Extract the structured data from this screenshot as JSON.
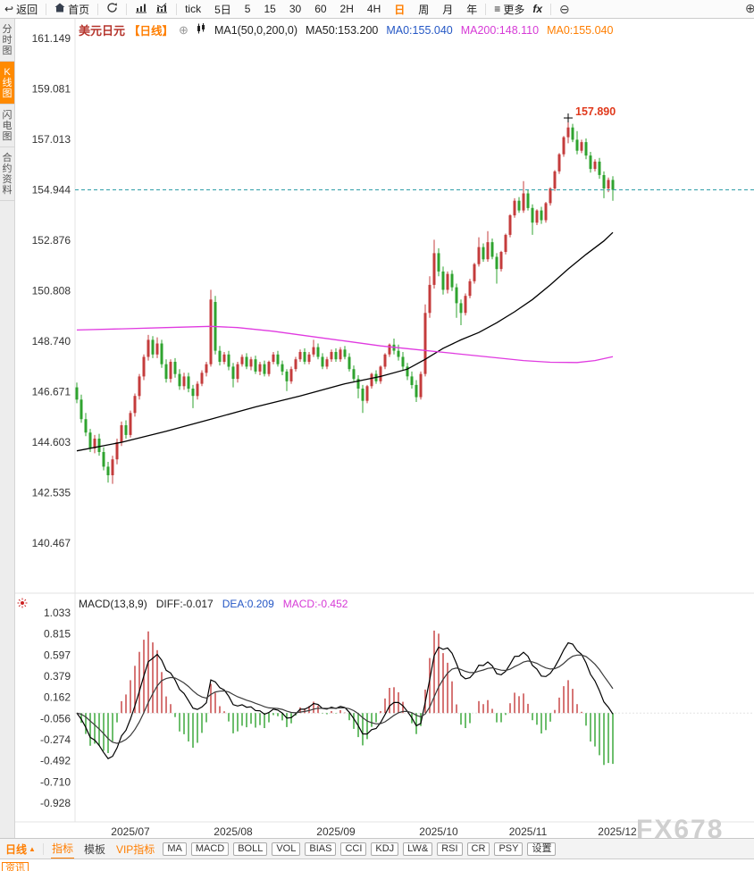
{
  "top_toolbar": {
    "back_label": "返回",
    "home_label": "首页",
    "more_label": "更多",
    "fx_label": "fx",
    "periods": [
      "tick",
      "5日",
      "5",
      "15",
      "30",
      "60",
      "2H",
      "4H",
      "日",
      "周",
      "月",
      "年"
    ],
    "active_period": "日"
  },
  "sidebar": {
    "items": [
      {
        "label": "分时图",
        "active": false
      },
      {
        "label": "K线图",
        "active": true
      },
      {
        "label": "闪电图",
        "active": false
      },
      {
        "label": "合约资料",
        "active": false
      }
    ]
  },
  "chart_header": {
    "symbol": "美元日元",
    "period_tag": "【日线】",
    "ma_settings": "MA1(50,0,200,0)",
    "ma50": "MA50:153.200",
    "ma0_blue": "MA0:155.040",
    "ma200": "MA200:148.110",
    "ma0_orange": "MA0:155.040"
  },
  "macd_header": {
    "title": "MACD(13,8,9)",
    "diff": "DIFF:-0.017",
    "dea": "DEA:0.209",
    "macd": "MACD:-0.452"
  },
  "bottom_toolbar": {
    "period_label": "日线",
    "tabs": [
      {
        "label": "指标",
        "active": true,
        "vip": false
      },
      {
        "label": "模板",
        "active": false,
        "vip": false
      },
      {
        "label": "VIP指标",
        "active": false,
        "vip": true
      }
    ],
    "indicator_buttons": [
      "MA",
      "MACD",
      "BOLL",
      "VOL",
      "BIAS",
      "CCI",
      "KDJ",
      "LW&",
      "RSI",
      "CR",
      "PSY",
      "设置"
    ]
  },
  "news_tab": "资讯",
  "watermark": "FX678",
  "accent_color": "#ff7e00",
  "chart_data": [
    {
      "type": "candlestick",
      "symbol": "美元日元",
      "period": "日线",
      "y_ticks": [
        "161.149",
        "159.081",
        "157.013",
        "154.944",
        "152.876",
        "150.808",
        "148.740",
        "146.671",
        "144.603",
        "142.535",
        "140.467"
      ],
      "x_ticks": [
        {
          "label": "2025/07",
          "index": 12
        },
        {
          "label": "2025/08",
          "index": 35
        },
        {
          "label": "2025/09",
          "index": 58
        },
        {
          "label": "2025/10",
          "index": 81
        },
        {
          "label": "2025/11",
          "index": 101
        },
        {
          "label": "2025/12",
          "index": 121
        }
      ],
      "current_price": 154.944,
      "peak_label": "157.890",
      "peak_index": 110,
      "colors": {
        "up": "#c43c3c",
        "down": "#2fa32f",
        "ma50": "#000000",
        "ma200": "#e03ae0",
        "current_price_line": "#2f9fa8"
      },
      "ma50_points": [
        [
          0,
          144.25
        ],
        [
          10,
          144.6
        ],
        [
          20,
          145.05
        ],
        [
          30,
          145.55
        ],
        [
          40,
          146.05
        ],
        [
          50,
          146.5
        ],
        [
          60,
          147.0
        ],
        [
          68,
          147.3
        ],
        [
          74,
          147.6
        ],
        [
          78,
          148.0
        ],
        [
          82,
          148.45
        ],
        [
          86,
          148.8
        ],
        [
          90,
          149.1
        ],
        [
          94,
          149.5
        ],
        [
          98,
          149.95
        ],
        [
          102,
          150.45
        ],
        [
          106,
          151.05
        ],
        [
          110,
          151.7
        ],
        [
          114,
          152.3
        ],
        [
          118,
          152.85
        ],
        [
          120,
          153.2
        ]
      ],
      "ma200_points": [
        [
          0,
          149.2
        ],
        [
          10,
          149.25
        ],
        [
          20,
          149.3
        ],
        [
          30,
          149.35
        ],
        [
          36,
          149.3
        ],
        [
          44,
          149.15
        ],
        [
          52,
          148.95
        ],
        [
          60,
          148.75
        ],
        [
          68,
          148.55
        ],
        [
          76,
          148.4
        ],
        [
          84,
          148.25
        ],
        [
          92,
          148.1
        ],
        [
          100,
          147.95
        ],
        [
          106,
          147.88
        ],
        [
          112,
          147.87
        ],
        [
          116,
          147.95
        ],
        [
          120,
          148.11
        ]
      ],
      "candles": [
        [
          146.85,
          147.05,
          146.2,
          146.35
        ],
        [
          146.35,
          146.55,
          145.4,
          145.55
        ],
        [
          145.55,
          145.8,
          144.85,
          145.0
        ],
        [
          145.0,
          145.15,
          144.2,
          144.35
        ],
        [
          144.35,
          144.9,
          144.15,
          144.75
        ],
        [
          144.75,
          144.95,
          144.05,
          144.2
        ],
        [
          144.2,
          144.4,
          143.45,
          143.6
        ],
        [
          143.6,
          143.8,
          142.95,
          143.25
        ],
        [
          143.25,
          144.05,
          142.9,
          143.9
        ],
        [
          143.9,
          144.75,
          143.7,
          144.6
        ],
        [
          144.6,
          145.45,
          144.45,
          145.3
        ],
        [
          145.3,
          145.5,
          144.75,
          144.9
        ],
        [
          144.9,
          145.9,
          144.8,
          145.8
        ],
        [
          145.8,
          146.6,
          145.65,
          146.5
        ],
        [
          146.5,
          147.4,
          146.35,
          147.3
        ],
        [
          147.3,
          148.2,
          147.15,
          148.1
        ],
        [
          148.1,
          149.0,
          147.95,
          148.8
        ],
        [
          148.8,
          148.95,
          148.05,
          148.2
        ],
        [
          148.2,
          148.9,
          148.05,
          148.65
        ],
        [
          148.65,
          148.8,
          147.65,
          147.8
        ],
        [
          147.8,
          148.0,
          147.05,
          147.2
        ],
        [
          147.2,
          148.0,
          147.05,
          147.9
        ],
        [
          147.9,
          148.05,
          147.25,
          147.4
        ],
        [
          147.4,
          147.6,
          146.75,
          146.9
        ],
        [
          146.9,
          147.45,
          146.75,
          147.3
        ],
        [
          147.3,
          147.45,
          146.65,
          146.8
        ],
        [
          146.8,
          146.95,
          146.0,
          146.5
        ],
        [
          146.5,
          147.1,
          146.35,
          147.0
        ],
        [
          147.0,
          147.55,
          146.9,
          147.45
        ],
        [
          147.45,
          147.9,
          147.3,
          147.8
        ],
        [
          147.8,
          150.85,
          147.7,
          150.45
        ],
        [
          150.35,
          150.6,
          148.2,
          148.35
        ],
        [
          148.35,
          148.55,
          147.75,
          147.9
        ],
        [
          147.9,
          148.3,
          147.8,
          148.2
        ],
        [
          148.2,
          148.35,
          147.55,
          147.7
        ],
        [
          147.7,
          147.85,
          146.85,
          147.2
        ],
        [
          147.2,
          147.9,
          147.05,
          147.8
        ],
        [
          147.8,
          148.2,
          147.7,
          148.1
        ],
        [
          148.1,
          148.25,
          147.6,
          147.7
        ],
        [
          147.7,
          148.1,
          147.55,
          148.0
        ],
        [
          148.0,
          148.15,
          147.4,
          147.5
        ],
        [
          147.5,
          147.9,
          147.35,
          147.8
        ],
        [
          147.8,
          147.95,
          147.3,
          147.4
        ],
        [
          147.4,
          147.95,
          147.3,
          147.9
        ],
        [
          147.9,
          148.3,
          147.8,
          148.2
        ],
        [
          148.2,
          148.35,
          147.7,
          147.8
        ],
        [
          147.8,
          147.95,
          147.35,
          147.5
        ],
        [
          147.5,
          147.6,
          146.7,
          147.1
        ],
        [
          147.1,
          147.7,
          147.0,
          147.6
        ],
        [
          147.6,
          148.1,
          147.5,
          148.0
        ],
        [
          148.0,
          148.4,
          147.9,
          148.3
        ],
        [
          148.3,
          148.45,
          147.8,
          147.9
        ],
        [
          147.9,
          148.3,
          147.8,
          148.2
        ],
        [
          148.2,
          148.8,
          148.1,
          148.5
        ],
        [
          148.5,
          148.65,
          148.0,
          148.1
        ],
        [
          148.1,
          148.25,
          147.6,
          147.7
        ],
        [
          147.7,
          148.1,
          147.6,
          148.0
        ],
        [
          148.0,
          148.4,
          147.9,
          148.3
        ],
        [
          148.3,
          148.45,
          147.9,
          148.0
        ],
        [
          148.0,
          148.5,
          147.9,
          148.4
        ],
        [
          148.4,
          148.55,
          148.0,
          148.1
        ],
        [
          148.1,
          148.25,
          147.5,
          147.6
        ],
        [
          147.6,
          147.75,
          147.1,
          147.2
        ],
        [
          147.2,
          147.35,
          146.4,
          146.8
        ],
        [
          146.8,
          146.95,
          145.8,
          146.3
        ],
        [
          146.3,
          146.95,
          146.2,
          146.9
        ],
        [
          146.9,
          147.45,
          146.8,
          147.4
        ],
        [
          147.4,
          147.55,
          147.0,
          147.1
        ],
        [
          147.1,
          147.75,
          147.0,
          147.7
        ],
        [
          147.7,
          148.25,
          147.6,
          148.2
        ],
        [
          148.2,
          148.65,
          148.1,
          148.6
        ],
        [
          148.6,
          148.85,
          148.2,
          148.35
        ],
        [
          148.35,
          148.6,
          147.95,
          148.1
        ],
        [
          148.1,
          148.3,
          147.55,
          147.7
        ],
        [
          147.7,
          147.85,
          147.15,
          147.3
        ],
        [
          147.3,
          147.5,
          146.8,
          146.95
        ],
        [
          146.95,
          147.15,
          146.25,
          146.45
        ],
        [
          146.45,
          147.5,
          146.35,
          147.4
        ],
        [
          147.4,
          150.25,
          147.3,
          149.9
        ],
        [
          149.9,
          151.4,
          149.7,
          151.05
        ],
        [
          151.05,
          152.9,
          150.9,
          152.35
        ],
        [
          152.35,
          152.55,
          151.4,
          151.6
        ],
        [
          151.6,
          151.8,
          150.65,
          150.85
        ],
        [
          150.85,
          151.6,
          150.7,
          151.5
        ],
        [
          151.5,
          151.65,
          150.8,
          150.95
        ],
        [
          150.95,
          151.1,
          149.7,
          150.3
        ],
        [
          150.3,
          150.45,
          149.4,
          149.9
        ],
        [
          149.9,
          150.7,
          149.8,
          150.6
        ],
        [
          150.6,
          151.3,
          150.5,
          151.2
        ],
        [
          151.2,
          151.95,
          151.1,
          151.9
        ],
        [
          151.9,
          153.0,
          151.8,
          152.6
        ],
        [
          152.6,
          152.75,
          152.0,
          152.1
        ],
        [
          152.1,
          153.25,
          152.0,
          152.8
        ],
        [
          152.8,
          152.95,
          152.1,
          152.2
        ],
        [
          152.2,
          152.35,
          151.1,
          151.7
        ],
        [
          151.7,
          152.45,
          151.6,
          152.4
        ],
        [
          152.4,
          153.15,
          152.3,
          153.1
        ],
        [
          153.1,
          153.95,
          153.0,
          153.9
        ],
        [
          153.9,
          154.6,
          153.8,
          154.5
        ],
        [
          154.5,
          154.65,
          154.0,
          154.1
        ],
        [
          154.1,
          155.3,
          154.0,
          154.8
        ],
        [
          154.8,
          154.95,
          154.1,
          154.2
        ],
        [
          154.2,
          154.35,
          153.1,
          153.6
        ],
        [
          153.6,
          154.15,
          153.5,
          154.1
        ],
        [
          154.1,
          154.25,
          153.55,
          153.7
        ],
        [
          153.7,
          154.45,
          153.6,
          154.4
        ],
        [
          154.4,
          155.05,
          154.3,
          155.0
        ],
        [
          155.0,
          155.75,
          154.9,
          155.7
        ],
        [
          155.7,
          156.45,
          155.6,
          156.4
        ],
        [
          156.4,
          157.15,
          156.3,
          157.1
        ],
        [
          157.1,
          157.89,
          156.85,
          157.5
        ],
        [
          157.5,
          157.65,
          156.9,
          157.0
        ],
        [
          157.0,
          157.35,
          156.4,
          156.55
        ],
        [
          156.55,
          157.0,
          156.45,
          156.9
        ],
        [
          156.9,
          157.05,
          156.2,
          156.35
        ],
        [
          156.35,
          156.5,
          155.65,
          155.8
        ],
        [
          155.8,
          156.2,
          155.7,
          156.1
        ],
        [
          156.1,
          156.25,
          155.4,
          155.55
        ],
        [
          155.55,
          155.7,
          154.6,
          155.0
        ],
        [
          155.0,
          155.45,
          154.85,
          155.35
        ],
        [
          155.35,
          155.5,
          154.5,
          154.944
        ]
      ]
    },
    {
      "type": "macd",
      "title": "MACD(13,8,9)",
      "params": "13,8,9",
      "diff": -0.017,
      "dea": 0.209,
      "macd": -0.452,
      "y_ticks": [
        "1.033",
        "0.815",
        "0.597",
        "0.379",
        "0.162",
        "-0.056",
        "-0.274",
        "-0.492",
        "-0.710",
        "-0.928"
      ],
      "colors": {
        "positive": "#c43c3c",
        "negative": "#2fa32f",
        "diff_line": "#000000",
        "dea_line": "#3a3a3a"
      }
    }
  ]
}
